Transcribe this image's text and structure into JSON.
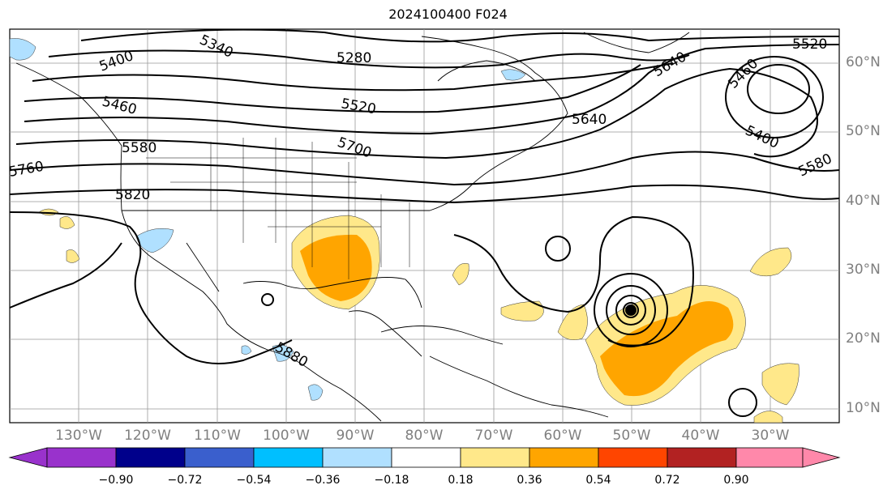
{
  "title": "2024100400 F024",
  "lat_labels": [
    "60°N",
    "50°N",
    "40°N",
    "30°N",
    "20°N",
    "10°N"
  ],
  "lon_labels": [
    "130°W",
    "120°W",
    "110°W",
    "100°W",
    "90°W",
    "80°W",
    "70°W",
    "60°W",
    "50°W",
    "40°W",
    "30°W"
  ],
  "contour_labels": [
    "5340",
    "5280",
    "5400",
    "5460",
    "5520",
    "5580",
    "5640",
    "5700",
    "5760",
    "5820",
    "5880",
    "5400",
    "5460",
    "5520",
    "5580",
    "5640"
  ],
  "colorbar": {
    "ticks": [
      "−0.90",
      "−0.72",
      "−0.54",
      "−0.36",
      "−0.18",
      "0.18",
      "0.36",
      "0.54",
      "0.72",
      "0.90"
    ],
    "colors": [
      "#9932cc",
      "#00008b",
      "#3a5fcd",
      "#00bfff",
      "#b0e0ff",
      "#ffffff",
      "#ffe88a",
      "#ffa500",
      "#ff4500",
      "#b22222",
      "#ff88aa"
    ]
  }
}
